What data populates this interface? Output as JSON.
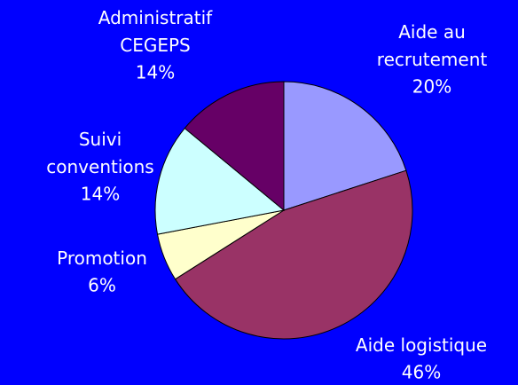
{
  "chart_data": {
    "type": "pie",
    "categories": [
      "Aide au\nrecrutement",
      "Aide logistique",
      "Promotion",
      "Suivi\nconventions",
      "Administratif\nCEGEPS"
    ],
    "values": [
      20,
      46,
      6,
      14,
      14
    ],
    "value_labels": [
      "20%",
      "46%",
      "6%",
      "14%",
      "14%"
    ],
    "colors": [
      "#9999ff",
      "#993366",
      "#ffffcc",
      "#ccffff",
      "#660066"
    ],
    "start_angle": 90,
    "direction": "clockwise"
  }
}
